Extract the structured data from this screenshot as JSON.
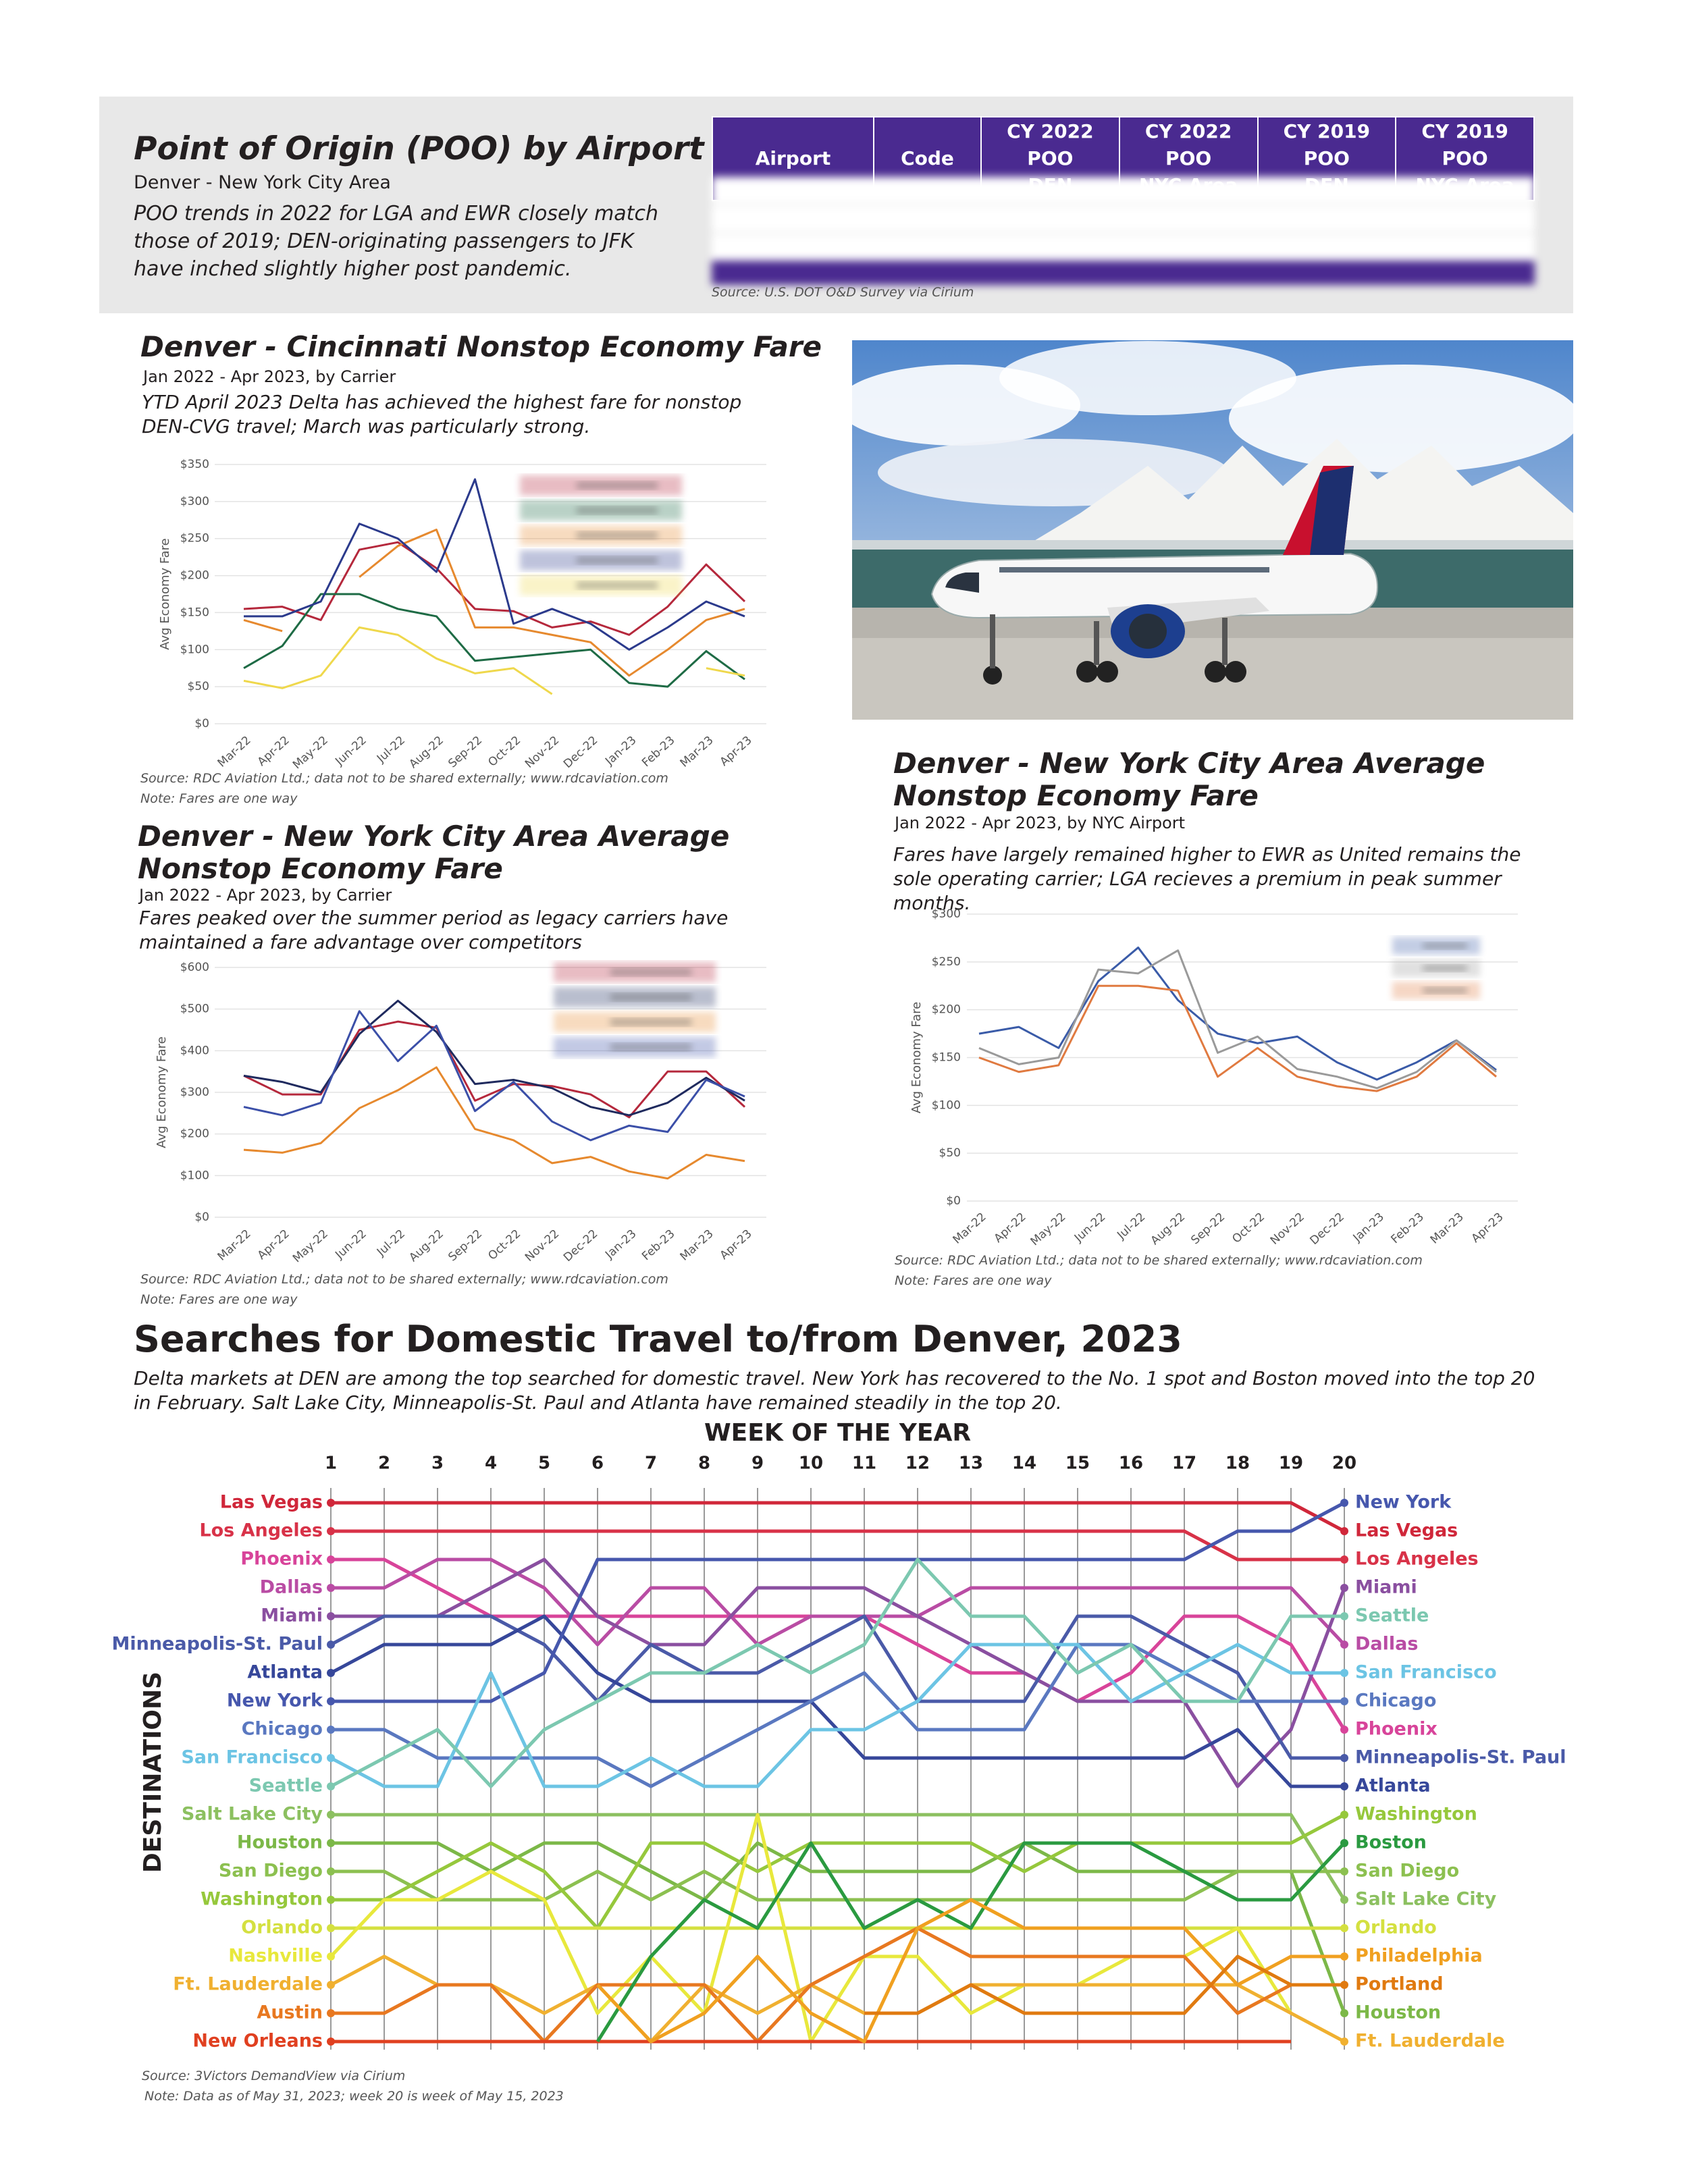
{
  "header": {
    "title": "Point of Origin (POO) by Airport",
    "subtitle": "Denver - New York City Area",
    "description": "POO trends in 2022 for LGA and EWR closely match those of 2019; DEN-originating passengers to JFK have inched slightly higher post pandemic."
  },
  "table": {
    "columns": [
      "Airport",
      "Code",
      "CY 2022 POO\nDEN",
      "CY 2022 POO\nNYC Area",
      "CY 2019 POO\nDEN",
      "CY 2019 POO\nNYC Area"
    ],
    "source": "Source: U.S. DOT O&D Survey via Cirium"
  },
  "chart_data": [
    {
      "type": "line",
      "title": "Denver - Cincinnati Nonstop Economy Fare",
      "subtitle": "Jan 2022 - Apr 2023, by Carrier",
      "description": "YTD April 2023 Delta has achieved the highest fare for nonstop DEN-CVG travel; March was particularly strong.",
      "ylabel": "Avg Economy Fare",
      "categories": [
        "Mar-22",
        "Apr-22",
        "May-22",
        "Jun-22",
        "Jul-22",
        "Aug-22",
        "Sep-22",
        "Oct-22",
        "Nov-22",
        "Dec-22",
        "Jan-23",
        "Feb-23",
        "Mar-23",
        "Apr-23"
      ],
      "series": [
        {
          "color": "#b5283c",
          "values": [
            155,
            158,
            140,
            235,
            245,
            210,
            155,
            152,
            130,
            138,
            120,
            158,
            215,
            165
          ]
        },
        {
          "color": "#1e6b45",
          "values": [
            75,
            105,
            175,
            175,
            155,
            145,
            85,
            90,
            95,
            100,
            55,
            50,
            98,
            60
          ]
        },
        {
          "color": "#e6892e",
          "values": [
            140,
            125,
            null,
            198,
            240,
            262,
            130,
            130,
            120,
            110,
            65,
            100,
            140,
            155
          ]
        },
        {
          "color": "#2b3a8c",
          "values": [
            145,
            145,
            165,
            270,
            250,
            205,
            330,
            135,
            155,
            135,
            100,
            130,
            165,
            145
          ]
        },
        {
          "color": "#efd84c",
          "values": [
            58,
            48,
            65,
            130,
            120,
            88,
            68,
            75,
            40,
            null,
            null,
            null,
            75,
            65
          ]
        }
      ],
      "ylim": [
        0,
        350
      ],
      "yticks": [
        {
          "value": 0,
          "label": "$0"
        },
        {
          "value": 50,
          "label": "$50"
        },
        {
          "value": 100,
          "label": "$100"
        },
        {
          "value": 150,
          "label": "$150"
        },
        {
          "value": 200,
          "label": "$200"
        },
        {
          "value": 250,
          "label": "$250"
        },
        {
          "value": 300,
          "label": "$300"
        },
        {
          "value": 350,
          "label": "$350"
        }
      ],
      "grid": true,
      "source": "Source: RDC Aviation Ltd.; data not to be shared externally; www.rdcaviation.com",
      "note": "Note: Fares are one way"
    },
    {
      "type": "line",
      "title": "Denver - New York City Area Average\nNonstop Economy Fare",
      "subtitle": "Jan 2022 - Apr 2023, by Carrier",
      "description": "Fares peaked over the summer period as legacy carriers have maintained a fare advantage over competitors",
      "ylabel": "Avg Economy Fare",
      "categories": [
        "Mar-22",
        "Apr-22",
        "May-22",
        "Jun-22",
        "Jul-22",
        "Aug-22",
        "Sep-22",
        "Oct-22",
        "Nov-22",
        "Dec-22",
        "Jan-23",
        "Feb-23",
        "Mar-23",
        "Apr-23"
      ],
      "series": [
        {
          "color": "#b5283c",
          "values": [
            340,
            295,
            295,
            450,
            470,
            455,
            280,
            320,
            315,
            295,
            240,
            350,
            350,
            265
          ]
        },
        {
          "color": "#1f2a5e",
          "values": [
            340,
            325,
            300,
            440,
            520,
            445,
            320,
            330,
            310,
            265,
            245,
            275,
            335,
            280
          ]
        },
        {
          "color": "#e6892e",
          "values": [
            162,
            155,
            178,
            262,
            305,
            360,
            212,
            185,
            130,
            145,
            110,
            93,
            150,
            135
          ]
        },
        {
          "color": "#3b4fa8",
          "values": [
            265,
            245,
            275,
            495,
            375,
            460,
            255,
            325,
            230,
            185,
            220,
            205,
            330,
            290
          ]
        }
      ],
      "ylim": [
        0,
        600
      ],
      "yticks": [
        {
          "value": 0,
          "label": "$0"
        },
        {
          "value": 100,
          "label": "$100"
        },
        {
          "value": 200,
          "label": "$200"
        },
        {
          "value": 300,
          "label": "$300"
        },
        {
          "value": 400,
          "label": "$400"
        },
        {
          "value": 500,
          "label": "$500"
        },
        {
          "value": 600,
          "label": "$600"
        }
      ],
      "grid": true,
      "source": "Source: RDC Aviation Ltd.; data not to be shared externally; www.rdcaviation.com",
      "note": "Note: Fares are one way"
    },
    {
      "type": "line",
      "title": "Denver - New York City Area Average\nNonstop Economy Fare",
      "subtitle": "Jan 2022 - Apr 2023, by NYC Airport",
      "description": "Fares have largely remained higher to EWR as United remains the sole operating carrier; LGA recieves a premium in peak summer months.",
      "ylabel": "Avg Economy Fare",
      "categories": [
        "Mar-22",
        "Apr-22",
        "May-22",
        "Jun-22",
        "Jul-22",
        "Aug-22",
        "Sep-22",
        "Oct-22",
        "Nov-22",
        "Dec-22",
        "Jan-23",
        "Feb-23",
        "Mar-23",
        "Apr-23"
      ],
      "series": [
        {
          "color": "#3a5ba8",
          "values": [
            175,
            182,
            160,
            230,
            265,
            210,
            175,
            165,
            172,
            145,
            127,
            145,
            168,
            137
          ]
        },
        {
          "color": "#9a9a9a",
          "values": [
            160,
            143,
            150,
            242,
            238,
            262,
            155,
            172,
            138,
            130,
            118,
            135,
            168,
            135
          ]
        },
        {
          "color": "#e07a40",
          "values": [
            150,
            135,
            142,
            225,
            225,
            220,
            130,
            160,
            130,
            120,
            115,
            130,
            165,
            130
          ]
        }
      ],
      "ylim": [
        0,
        300
      ],
      "yticks": [
        {
          "value": 0,
          "label": "$0"
        },
        {
          "value": 50,
          "label": "$50"
        },
        {
          "value": 100,
          "label": "$100"
        },
        {
          "value": 150,
          "label": "$150"
        },
        {
          "value": 200,
          "label": "$200"
        },
        {
          "value": 250,
          "label": "$250"
        },
        {
          "value": 300,
          "label": "$300"
        }
      ],
      "grid": true,
      "source": "Source: RDC Aviation Ltd.; data not to be shared externally; www.rdcaviation.com",
      "note": "Note: Fares are one way"
    },
    {
      "type": "bump",
      "title": "Searches for Domestic Travel to/from Denver, 2023",
      "description": "Delta markets at DEN are among the top searched for domestic travel. New York has recovered to the No. 1 spot and Boston moved into the top 20 in February. Salt Lake City, Minneapolis-St. Paul and Atlanta have remained steadily in the top 20.",
      "xlabel": "WEEK OF THE YEAR",
      "ylabel": "DESTINATIONS",
      "x": [
        1,
        2,
        3,
        4,
        5,
        6,
        7,
        8,
        9,
        10,
        11,
        12,
        13,
        14,
        15,
        16,
        17,
        18,
        19,
        20
      ],
      "xlim": [
        1,
        20
      ],
      "xticks": [
        1,
        2,
        3,
        4,
        5,
        6,
        7,
        8,
        9,
        10,
        11,
        12,
        13,
        14,
        15,
        16,
        17,
        18,
        19,
        20
      ],
      "ylim": [
        1,
        20
      ],
      "inverted": true,
      "series": [
        {
          "name": "Las Vegas",
          "color": "#d0273a",
          "values": [
            1,
            1,
            1,
            1,
            1,
            1,
            1,
            1,
            1,
            1,
            1,
            1,
            1,
            1,
            1,
            1,
            1,
            1,
            1,
            2
          ]
        },
        {
          "name": "Los Angeles",
          "color": "#d83248",
          "values": [
            2,
            2,
            2,
            2,
            2,
            2,
            2,
            2,
            2,
            2,
            2,
            2,
            2,
            2,
            2,
            2,
            2,
            3,
            3,
            3
          ]
        },
        {
          "name": "Phoenix",
          "color": "#d8449a",
          "values": [
            3,
            3,
            4,
            5,
            5,
            5,
            5,
            5,
            5,
            5,
            5,
            6,
            7,
            7,
            8,
            7,
            5,
            5,
            6,
            9
          ]
        },
        {
          "name": "Dallas",
          "color": "#b94ca4",
          "values": [
            4,
            4,
            3,
            3,
            4,
            6,
            4,
            4,
            6,
            5,
            5,
            5,
            4,
            4,
            4,
            4,
            4,
            4,
            4,
            6
          ]
        },
        {
          "name": "Miami",
          "color": "#8a4fa0",
          "values": [
            5,
            5,
            5,
            4,
            3,
            5,
            6,
            6,
            4,
            4,
            4,
            5,
            6,
            7,
            8,
            8,
            8,
            11,
            9,
            4
          ]
        },
        {
          "name": "Minneapolis-St. Paul",
          "color": "#4a5aa8",
          "values": [
            6,
            5,
            5,
            5,
            6,
            8,
            6,
            7,
            7,
            6,
            5,
            8,
            8,
            8,
            5,
            5,
            6,
            7,
            10,
            10
          ]
        },
        {
          "name": "Atlanta",
          "color": "#36479a",
          "values": [
            7,
            6,
            6,
            6,
            5,
            7,
            8,
            8,
            8,
            8,
            10,
            10,
            10,
            10,
            10,
            10,
            10,
            9,
            11,
            11
          ]
        },
        {
          "name": "New York",
          "color": "#4657ad",
          "values": [
            8,
            8,
            8,
            8,
            7,
            3,
            3,
            3,
            3,
            3,
            3,
            3,
            3,
            3,
            3,
            3,
            3,
            2,
            2,
            1
          ]
        },
        {
          "name": "Chicago",
          "color": "#5a78c0",
          "values": [
            9,
            9,
            10,
            10,
            10,
            10,
            11,
            10,
            9,
            8,
            7,
            9,
            9,
            9,
            6,
            6,
            7,
            8,
            8,
            8
          ]
        },
        {
          "name": "San Francisco",
          "color": "#6cc4e4",
          "values": [
            10,
            11,
            11,
            7,
            11,
            11,
            10,
            11,
            11,
            9,
            9,
            8,
            6,
            6,
            6,
            8,
            7,
            6,
            7,
            7
          ]
        },
        {
          "name": "Seattle",
          "color": "#7cc8b0",
          "values": [
            11,
            10,
            9,
            11,
            9,
            8,
            7,
            7,
            6,
            7,
            6,
            3,
            5,
            5,
            7,
            6,
            8,
            8,
            5,
            5
          ]
        },
        {
          "name": "Salt Lake City",
          "color": "#8cc060",
          "values": [
            12,
            12,
            12,
            12,
            12,
            12,
            12,
            12,
            12,
            12,
            12,
            12,
            12,
            12,
            12,
            12,
            12,
            12,
            12,
            15
          ]
        },
        {
          "name": "Houston",
          "color": "#7cb848",
          "values": [
            13,
            13,
            13,
            14,
            13,
            13,
            14,
            15,
            13,
            14,
            14,
            14,
            14,
            13,
            14,
            14,
            14,
            14,
            14,
            19
          ]
        },
        {
          "name": "San Diego",
          "color": "#8cc050",
          "values": [
            14,
            14,
            15,
            15,
            15,
            14,
            15,
            14,
            15,
            15,
            15,
            15,
            15,
            15,
            15,
            15,
            15,
            14,
            14,
            14
          ]
        },
        {
          "name": "Washington",
          "color": "#96c83c",
          "values": [
            15,
            15,
            14,
            13,
            14,
            16,
            13,
            13,
            14,
            13,
            13,
            13,
            13,
            14,
            13,
            13,
            13,
            13,
            13,
            12
          ]
        },
        {
          "name": "Orlando",
          "color": "#d4e040",
          "values": [
            16,
            16,
            16,
            16,
            16,
            16,
            16,
            16,
            16,
            16,
            16,
            16,
            16,
            16,
            16,
            16,
            16,
            16,
            16,
            16
          ]
        },
        {
          "name": "Nashville",
          "color": "#e8e83c",
          "values": [
            17,
            15,
            15,
            14,
            15,
            19,
            17,
            19,
            12,
            20,
            17,
            17,
            19,
            18,
            18,
            17,
            17,
            16,
            19,
            null
          ]
        },
        {
          "name": "Ft. Lauderdale",
          "color": "#f0b030",
          "values": [
            18,
            17,
            18,
            18,
            19,
            18,
            20,
            18,
            19,
            18,
            19,
            19,
            18,
            18,
            18,
            18,
            18,
            18,
            19,
            20
          ]
        },
        {
          "name": "Austin",
          "color": "#e87820",
          "values": [
            19,
            19,
            18,
            18,
            20,
            18,
            18,
            18,
            20,
            18,
            17,
            16,
            17,
            17,
            17,
            17,
            17,
            19,
            18,
            null
          ]
        },
        {
          "name": "New Orleans",
          "color": "#e04020",
          "values": [
            20,
            20,
            20,
            20,
            20,
            20,
            20,
            20,
            20,
            20,
            20,
            20,
            20,
            20,
            20,
            20,
            20,
            20,
            20,
            null
          ]
        },
        {
          "name": "Boston",
          "color": "#2a9a40",
          "values": [
            null,
            null,
            null,
            null,
            null,
            20,
            17,
            15,
            16,
            13,
            16,
            15,
            16,
            13,
            13,
            13,
            14,
            15,
            15,
            13
          ]
        },
        {
          "name": "Philadelphia",
          "color": "#f0a020",
          "values": [
            null,
            null,
            null,
            null,
            null,
            18,
            20,
            19,
            17,
            19,
            20,
            16,
            15,
            16,
            16,
            16,
            16,
            18,
            17,
            17
          ]
        },
        {
          "name": "Portland",
          "color": "#e07a10",
          "values": [
            null,
            null,
            null,
            null,
            null,
            null,
            null,
            null,
            null,
            null,
            19,
            19,
            18,
            19,
            19,
            19,
            19,
            17,
            18,
            18
          ]
        }
      ],
      "source": "Source: 3Victors DemandView via Cirium",
      "note": "Note: Data as of May 31, 2023; week 20 is week of May 15, 2023"
    }
  ]
}
